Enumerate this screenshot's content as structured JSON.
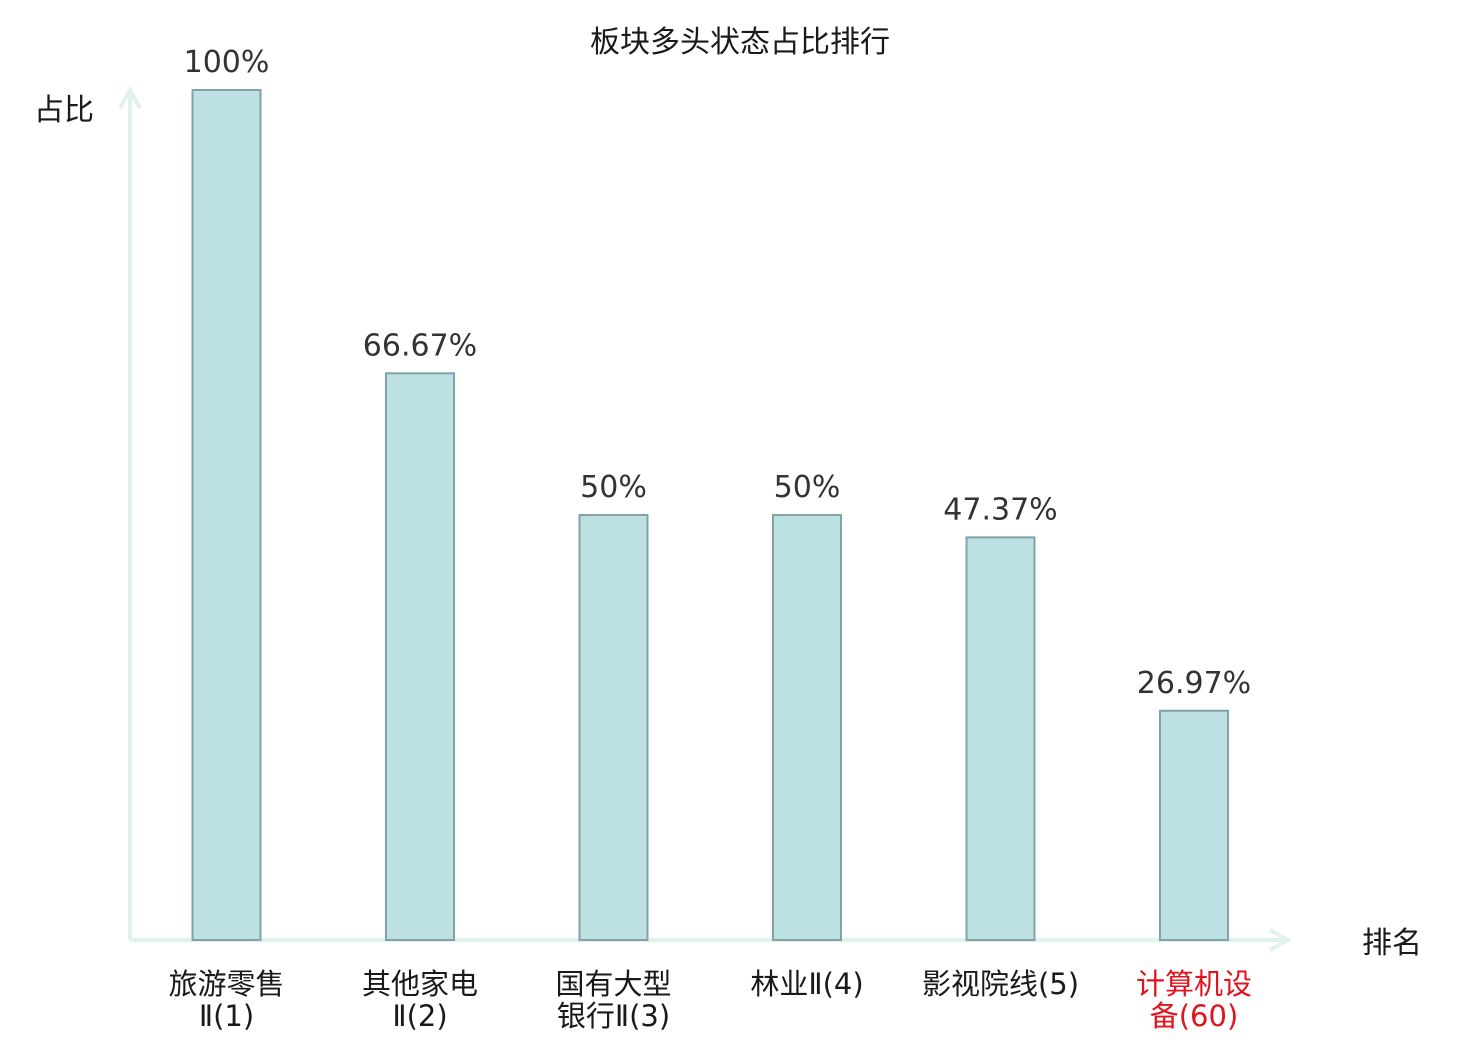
{
  "chart_data": {
    "type": "bar",
    "title": "板块多头状态占比排行",
    "ylabel": "占比",
    "xlabel": "排名",
    "ylim": [
      0,
      100
    ],
    "grid": false,
    "categories": [
      {
        "lines": [
          "旅游零售",
          "Ⅱ(1)"
        ],
        "highlight": false
      },
      {
        "lines": [
          "其他家电",
          "Ⅱ(2)"
        ],
        "highlight": false
      },
      {
        "lines": [
          "国有大型",
          "银行Ⅱ(3)"
        ],
        "highlight": false
      },
      {
        "lines": [
          "林业Ⅱ(4)"
        ],
        "highlight": false
      },
      {
        "lines": [
          "影视院线(5)"
        ],
        "highlight": false
      },
      {
        "lines": [
          "计算机设",
          "备(60)"
        ],
        "highlight": true
      }
    ],
    "values": [
      100,
      66.67,
      50,
      50,
      47.37,
      26.97
    ],
    "value_labels": [
      "100%",
      "66.67%",
      "50%",
      "50%",
      "47.37%",
      "26.97%"
    ],
    "colors": {
      "bar_fill": "#bde0e3",
      "bar_stroke": "#7fa3a6",
      "axis": "#dff2ee",
      "text": "#1a1a1a",
      "highlight_text": "#e0141e"
    }
  }
}
